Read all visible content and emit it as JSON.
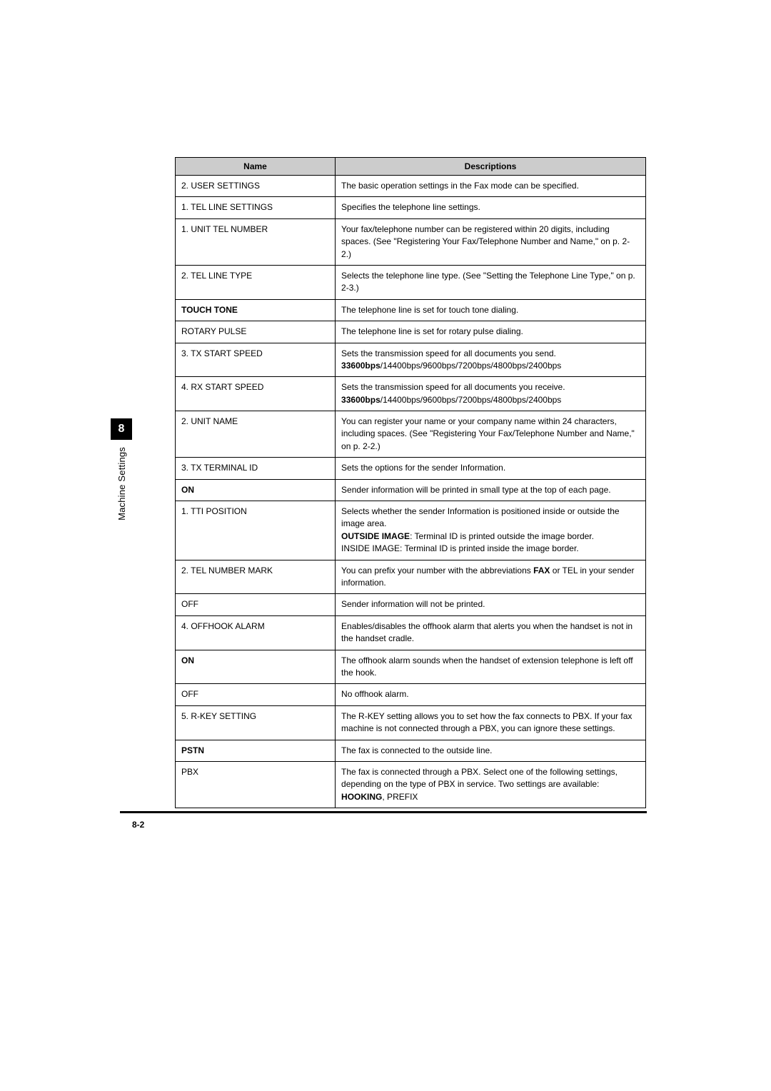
{
  "sidebar": {
    "chapter": "8",
    "label": "Machine Settings"
  },
  "table": {
    "headers": {
      "name": "Name",
      "desc": "Descriptions"
    },
    "header_bg": "#cccccc",
    "border_color": "#000000",
    "fontsize": 12
  },
  "rows": {
    "r0": {
      "name": "2. USER SETTINGS",
      "desc": "The basic operation settings in the Fax mode can be specified."
    },
    "r1": {
      "name": "1. TEL LINE SETTINGS",
      "desc": "Specifies the telephone line settings."
    },
    "r2": {
      "name": "1. UNIT TEL NUMBER",
      "desc": "Your fax/telephone number can be registered within 20 digits, including spaces. (See \"Registering Your Fax/Telephone Number and Name,\" on p. 2-2.)"
    },
    "r3": {
      "name": "2. TEL LINE TYPE",
      "desc": "Selects the telephone line type. (See \"Setting the Telephone Line Type,\" on p. 2-3.)"
    },
    "r4": {
      "name": "TOUCH TONE",
      "desc": "The telephone line is set for touch tone dialing."
    },
    "r5": {
      "name": "ROTARY PULSE",
      "desc": "The telephone line is set for rotary pulse dialing."
    },
    "r6": {
      "name": "3. TX START SPEED",
      "desc_a": "Sets the transmission speed for all documents you send.",
      "desc_b": "33600bps",
      "desc_c": "/14400bps/9600bps/7200bps/4800bps/2400bps"
    },
    "r7": {
      "name": "4. RX START SPEED",
      "desc_a": "Sets the transmission speed for all documents you receive.",
      "desc_b": "33600bps",
      "desc_c": "/14400bps/9600bps/7200bps/4800bps/2400bps"
    },
    "r8": {
      "name": "2. UNIT NAME",
      "desc": "You can register your name or your company name within 24 characters, including spaces. (See \"Registering Your Fax/Telephone Number and Name,\" on p. 2-2.)"
    },
    "r9": {
      "name": "3. TX TERMINAL ID",
      "desc": "Sets the options for the sender Information."
    },
    "r10": {
      "name": "ON",
      "desc": "Sender information will be printed in small type at the top of each page."
    },
    "r11": {
      "name": "1. TTI POSITION",
      "desc_a": "Selects whether the sender Information is positioned inside or outside the image area.",
      "desc_b": "OUTSIDE IMAGE",
      "desc_c": ": Terminal ID is printed outside the image border.",
      "desc_d": "INSIDE IMAGE: Terminal ID is printed inside the image border."
    },
    "r12": {
      "name": "2. TEL NUMBER MARK",
      "desc_a": "You can prefix your number with the abbreviations ",
      "desc_b": "FAX",
      "desc_c": " or TEL in your sender information."
    },
    "r13": {
      "name": "OFF",
      "desc": "Sender information will not be printed."
    },
    "r14": {
      "name": "4. OFFHOOK ALARM",
      "desc": "Enables/disables the offhook alarm that alerts you when the handset is not in the handset cradle."
    },
    "r15": {
      "name": "ON",
      "desc": "The offhook alarm sounds when the handset of extension telephone is left off the hook."
    },
    "r16": {
      "name": "OFF",
      "desc": "No offhook alarm."
    },
    "r17": {
      "name": "5. R-KEY SETTING",
      "desc": "The R-KEY setting allows you to set how the fax connects to PBX. If your fax machine is not connected through a PBX, you can ignore these settings."
    },
    "r18": {
      "name": "PSTN",
      "desc": "The fax is connected to the outside line."
    },
    "r19": {
      "name": "PBX",
      "desc_a": "The fax is connected through a PBX. Select one of the following settings, depending on the type of PBX in service. Two settings are available: ",
      "desc_b": "HOOKING",
      "desc_c": ", PREFIX"
    }
  },
  "footer": {
    "page": "8-2"
  }
}
